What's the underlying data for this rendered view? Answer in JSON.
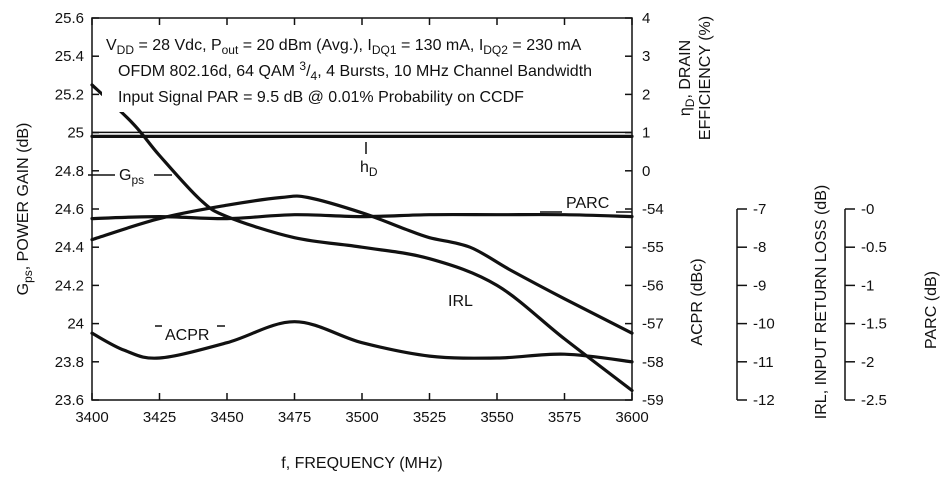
{
  "chart_data": {
    "type": "line",
    "x": [
      3400,
      3425,
      3450,
      3475,
      3500,
      3525,
      3550,
      3575,
      3600
    ],
    "x_ticks": [
      "3400",
      "3425",
      "3450",
      "3475",
      "3500",
      "3525",
      "3550",
      "3575",
      "3600"
    ],
    "xlabel": "f, FREQUENCY (MHz)",
    "xlim": [
      3400,
      3600
    ],
    "axes": {
      "gain": {
        "label_main": "G",
        "label_sub": "ps",
        "label_rest": ", POWER GAIN (dB)",
        "lim": [
          23.6,
          25.6
        ],
        "ticks": [
          "23.6",
          "23.8",
          "24",
          "24.2",
          "24.4",
          "24.6",
          "24.8",
          "25",
          "25.2",
          "25.4",
          "25.6"
        ]
      },
      "eff": {
        "label_line1_main": "η",
        "label_line1_sub": "D",
        "label_line1_rest": ", DRAIN",
        "label_line2": "EFFICIENCY (%)",
        "lim": [
          -59,
          4
        ],
        "ticks": [
          "4",
          "3",
          "2",
          "1",
          "0",
          "-54",
          "-55",
          "-56",
          "-57",
          "-58",
          "-59"
        ]
      },
      "acpr": {
        "label": "ACPR (dBc)"
      },
      "irl": {
        "label": "IRL, INPUT RETURN LOSS (dB)",
        "lim": [
          -12,
          -7
        ],
        "ticks": [
          "-7",
          "-8",
          "-9",
          "-10",
          "-11",
          "-12"
        ]
      },
      "parc": {
        "label": "PARC (dB)",
        "lim": [
          -2.5,
          0
        ],
        "ticks": [
          "-0",
          "-0.5",
          "-1",
          "-1.5",
          "-2",
          "-2.5"
        ]
      }
    },
    "series": [
      {
        "name": "Gps",
        "axis": "gain",
        "label_main": "G",
        "label_sub": "ps",
        "points": [
          [
            3400,
            25.25
          ],
          [
            3415,
            25.05
          ],
          [
            3425,
            24.88
          ],
          [
            3440,
            24.65
          ],
          [
            3450,
            24.56
          ],
          [
            3475,
            24.45
          ],
          [
            3500,
            24.4
          ],
          [
            3525,
            24.34
          ],
          [
            3550,
            24.2
          ],
          [
            3575,
            23.92
          ],
          [
            3600,
            23.65
          ]
        ]
      },
      {
        "name": "hD",
        "axis": "gain",
        "label_main": "h",
        "label_sub": "D",
        "points": [
          [
            3400,
            24.98
          ],
          [
            3600,
            24.98
          ]
        ]
      },
      {
        "name": "PARC",
        "axis": "gain",
        "label_main": "PARC",
        "label_sub": "",
        "points": [
          [
            3400,
            24.55
          ],
          [
            3425,
            24.56
          ],
          [
            3450,
            24.55
          ],
          [
            3475,
            24.57
          ],
          [
            3500,
            24.56
          ],
          [
            3525,
            24.57
          ],
          [
            3550,
            24.57
          ],
          [
            3575,
            24.57
          ],
          [
            3600,
            24.56
          ]
        ]
      },
      {
        "name": "IRL",
        "axis": "gain",
        "label_main": "IRL",
        "label_sub": "",
        "points": [
          [
            3400,
            24.44
          ],
          [
            3425,
            24.55
          ],
          [
            3450,
            24.62
          ],
          [
            3470,
            24.66
          ],
          [
            3480,
            24.66
          ],
          [
            3500,
            24.58
          ],
          [
            3515,
            24.5
          ],
          [
            3525,
            24.45
          ],
          [
            3540,
            24.4
          ],
          [
            3555,
            24.28
          ],
          [
            3575,
            24.13
          ],
          [
            3600,
            23.95
          ]
        ]
      },
      {
        "name": "ACPR",
        "axis": "gain",
        "label_main": "ACPR",
        "label_sub": "",
        "points": [
          [
            3400,
            23.95
          ],
          [
            3412,
            23.86
          ],
          [
            3425,
            23.82
          ],
          [
            3450,
            23.9
          ],
          [
            3475,
            24.01
          ],
          [
            3500,
            23.9
          ],
          [
            3525,
            23.83
          ],
          [
            3550,
            23.82
          ],
          [
            3575,
            23.84
          ],
          [
            3600,
            23.8
          ]
        ]
      }
    ],
    "annotation": {
      "line1": {
        "a": "V",
        "a_sub": "DD",
        "b": " = 28 Vdc, P",
        "b_sub": "out",
        "c": " = 20 dBm (Avg.), I",
        "c_sub": "DQ1",
        "d": " = 130 mA, I",
        "d_sub": "DQ2",
        "e": " = 230 mA"
      },
      "line2": {
        "a": "OFDM 802.16d, 64 QAM ",
        "sup": "3",
        "b": "/",
        "sub": "4",
        "c": ", 4 Bursts, 10 MHz Channel Bandwidth"
      },
      "line3": "Input Signal PAR = 9.5 dB @ 0.01% Probability on CCDF"
    },
    "grid": false,
    "legend": "inline-labels"
  }
}
